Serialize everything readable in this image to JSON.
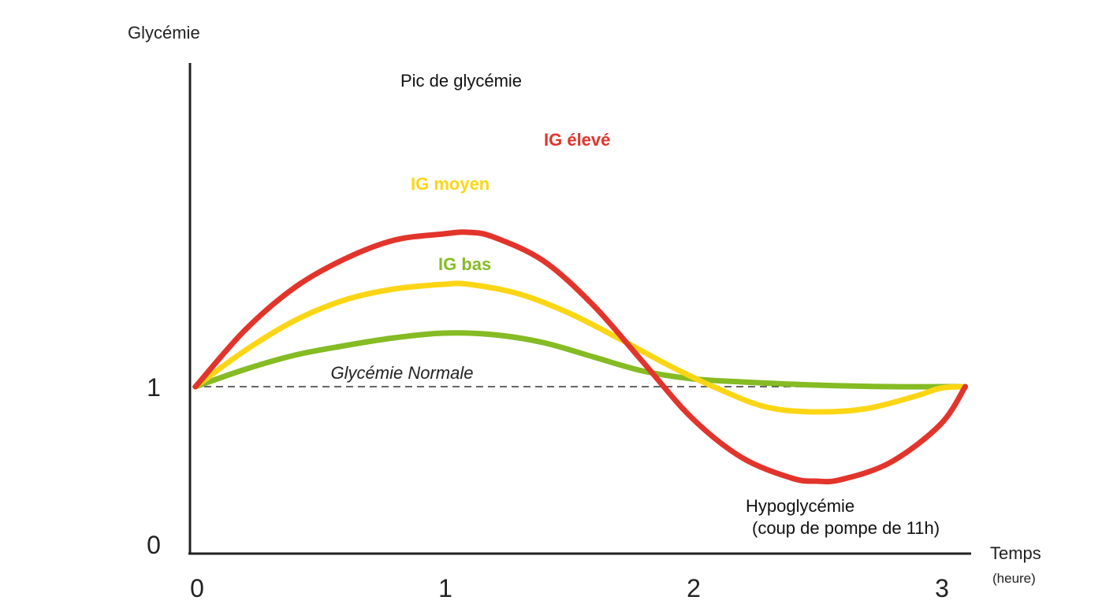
{
  "chart_data": {
    "type": "line",
    "y_axis_title": "Glycémie",
    "x_axis_title": "Temps",
    "x_axis_unit": "(heure)",
    "x_ticks": [
      "0",
      "1",
      "2",
      "3"
    ],
    "y_ticks": [
      "0",
      "1"
    ],
    "xlim": [
      0,
      3.1
    ],
    "ylim": [
      0,
      2.05
    ],
    "baseline": {
      "y": 1,
      "label": "Glycémie Normale",
      "style": "dashed"
    },
    "annotations": {
      "peak": "Pic de glycémie",
      "hypo_line1": "Hypoglycémie",
      "hypo_line2": "(coup de pompe de 11h)"
    },
    "series": [
      {
        "name": "IG élevé",
        "color": "#e3342b",
        "points": [
          [
            0,
            1
          ],
          [
            0.2,
            1.36
          ],
          [
            0.4,
            1.63
          ],
          [
            0.6,
            1.81
          ],
          [
            0.8,
            1.93
          ],
          [
            1.0,
            1.97
          ],
          [
            1.1,
            1.98
          ],
          [
            1.2,
            1.95
          ],
          [
            1.4,
            1.8
          ],
          [
            1.6,
            1.52
          ],
          [
            1.8,
            1.16
          ],
          [
            2.0,
            0.8
          ],
          [
            2.2,
            0.55
          ],
          [
            2.4,
            0.42
          ],
          [
            2.5,
            0.4
          ],
          [
            2.6,
            0.41
          ],
          [
            2.8,
            0.52
          ],
          [
            3.0,
            0.76
          ],
          [
            3.1,
            1.0
          ]
        ]
      },
      {
        "name": "IG moyen",
        "color": "#fcd615",
        "points": [
          [
            0,
            1
          ],
          [
            0.2,
            1.23
          ],
          [
            0.4,
            1.42
          ],
          [
            0.6,
            1.55
          ],
          [
            0.8,
            1.62
          ],
          [
            1.0,
            1.65
          ],
          [
            1.1,
            1.65
          ],
          [
            1.3,
            1.59
          ],
          [
            1.5,
            1.47
          ],
          [
            1.7,
            1.31
          ],
          [
            1.9,
            1.14
          ],
          [
            2.1,
            0.99
          ],
          [
            2.3,
            0.87
          ],
          [
            2.5,
            0.84
          ],
          [
            2.7,
            0.86
          ],
          [
            2.9,
            0.94
          ],
          [
            3.0,
            0.99
          ],
          [
            3.1,
            1.0
          ]
        ]
      },
      {
        "name": "IG bas",
        "color": "#85bb23",
        "points": [
          [
            0,
            1
          ],
          [
            0.2,
            1.11
          ],
          [
            0.4,
            1.2
          ],
          [
            0.6,
            1.26
          ],
          [
            0.8,
            1.31
          ],
          [
            1.0,
            1.34
          ],
          [
            1.2,
            1.33
          ],
          [
            1.4,
            1.28
          ],
          [
            1.6,
            1.19
          ],
          [
            1.8,
            1.1
          ],
          [
            2.0,
            1.05
          ],
          [
            2.2,
            1.03
          ],
          [
            2.5,
            1.01
          ],
          [
            2.8,
            1.0
          ],
          [
            3.1,
            1.0
          ]
        ]
      }
    ]
  }
}
